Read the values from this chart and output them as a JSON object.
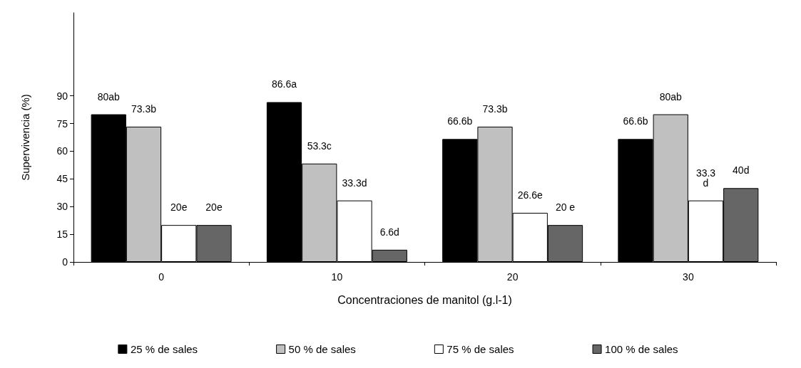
{
  "chart_data": {
    "type": "bar",
    "xlabel": "Concentraciones de manitol (g.l-1)",
    "ylabel": "Supervivencia (%)",
    "categories": [
      "0",
      "10",
      "20",
      "30"
    ],
    "series": [
      {
        "name": "25 % de sales",
        "color": "#000000",
        "values": [
          80,
          86.6,
          66.6,
          66.6
        ],
        "value_labels": [
          "80ab",
          "86.6a",
          "66.6b",
          "66.6b"
        ]
      },
      {
        "name": "50 % de sales",
        "color": "#c0c0c0",
        "values": [
          73.3,
          53.3,
          73.3,
          80
        ],
        "value_labels": [
          "73.3b",
          "53.3c",
          "73.3b",
          "80ab"
        ]
      },
      {
        "name": "75 % de sales",
        "color": "#ffffff",
        "values": [
          20,
          33.3,
          26.6,
          33.3
        ],
        "value_labels": [
          "20e",
          "33.3d",
          "26.6e",
          "33.3\nd"
        ]
      },
      {
        "name": "100 % de sales",
        "color": "#666666",
        "values": [
          20,
          6.6,
          20,
          40
        ],
        "value_labels": [
          "20e",
          "6.6d",
          "20 e",
          "40d"
        ]
      }
    ],
    "ylim": [
      0,
      135
    ],
    "yticks": [
      0,
      15,
      30,
      45,
      60,
      75,
      90
    ],
    "grid": false,
    "legend": "bottom"
  }
}
